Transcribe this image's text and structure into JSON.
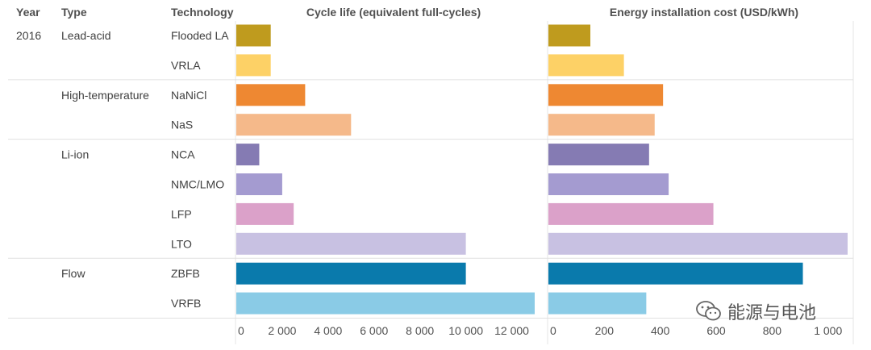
{
  "headers": {
    "year": "Year",
    "type": "Type",
    "technology": "Technology",
    "cycle": "Cycle life (equivalent full-cycles)",
    "cost": "Energy installation cost (USD/kWh)"
  },
  "rows": [
    {
      "year": "2016",
      "type": "Lead-acid",
      "tech": "Flooded LA",
      "color": "#BF9B1E"
    },
    {
      "year": "",
      "type": "",
      "tech": "VRLA",
      "color": "#FDD166"
    },
    {
      "year": "",
      "type": "High-temperature",
      "tech": "NaNiCl",
      "color": "#EE8832"
    },
    {
      "year": "",
      "type": "",
      "tech": "NaS",
      "color": "#F5B98A"
    },
    {
      "year": "",
      "type": "Li-ion",
      "tech": "NCA",
      "color": "#857BB3"
    },
    {
      "year": "",
      "type": "",
      "tech": "NMC/LMO",
      "color": "#A49BD0"
    },
    {
      "year": "",
      "type": "",
      "tech": "LFP",
      "color": "#DBA1C9"
    },
    {
      "year": "",
      "type": "",
      "tech": "LTO",
      "color": "#C8C1E2"
    },
    {
      "year": "",
      "type": "Flow",
      "tech": "ZBFB",
      "color": "#0A7AAC"
    },
    {
      "year": "",
      "type": "",
      "tech": "VRFB",
      "color": "#8ACBE6"
    }
  ],
  "group_starts": [
    0,
    2,
    4,
    8
  ],
  "chart_data": [
    {
      "type": "bar",
      "orientation": "horizontal",
      "title": "Cycle life (equivalent full-cycles)",
      "categories": [
        "Flooded LA",
        "VRLA",
        "NaNiCl",
        "NaS",
        "NCA",
        "NMC/LMO",
        "LFP",
        "LTO",
        "ZBFB",
        "VRFB"
      ],
      "values": [
        1500,
        1500,
        3000,
        5000,
        1000,
        2000,
        2500,
        10000,
        10000,
        13000
      ],
      "xlim": [
        0,
        13000
      ],
      "ticks": [
        0,
        2000,
        4000,
        6000,
        8000,
        10000,
        12000
      ],
      "tick_labels": [
        "0",
        "2 000",
        "4 000",
        "6 000",
        "8 000",
        "10 000",
        "12 000"
      ]
    },
    {
      "type": "bar",
      "orientation": "horizontal",
      "title": "Energy installation cost (USD/kWh)",
      "categories": [
        "Flooded LA",
        "VRLA",
        "NaNiCl",
        "NaS",
        "NCA",
        "NMC/LMO",
        "LFP",
        "LTO",
        "ZBFB",
        "VRFB"
      ],
      "values": [
        150,
        270,
        410,
        380,
        360,
        430,
        590,
        1070,
        910,
        350
      ],
      "xlim": [
        0,
        1070
      ],
      "ticks": [
        0,
        200,
        400,
        600,
        800,
        1000
      ],
      "tick_labels": [
        "0",
        "200",
        "400",
        "600",
        "800",
        "1 000"
      ]
    }
  ],
  "watermark": {
    "text": "能源与电池",
    "icon": "wechat-icon"
  }
}
